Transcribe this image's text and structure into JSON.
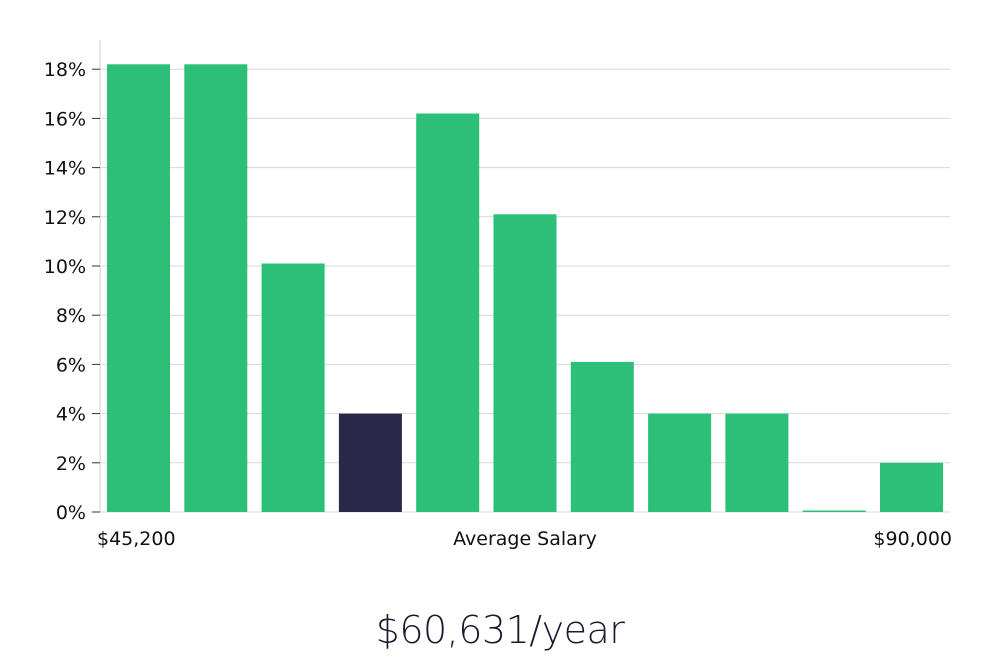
{
  "chart_data": {
    "type": "bar",
    "values": [
      18.2,
      18.2,
      10.1,
      4.0,
      16.2,
      12.1,
      6.1,
      4.0,
      4.0,
      0.05,
      2.0
    ],
    "highlight_index": 3,
    "y_ticks": [
      "0%",
      "2%",
      "4%",
      "6%",
      "8%",
      "10%",
      "12%",
      "14%",
      "16%",
      "18%"
    ],
    "ylim": [
      0,
      19
    ],
    "grid": true,
    "xlabel": "Average Salary",
    "x_min_label": "$45,200",
    "x_max_label": "$90,000",
    "colors": {
      "bar": "#2bbf78",
      "highlight": "#2a2748",
      "grid": "#d9d9d9",
      "axis": "#cfcfcf"
    }
  },
  "summary": {
    "value": "$60,631/year"
  }
}
